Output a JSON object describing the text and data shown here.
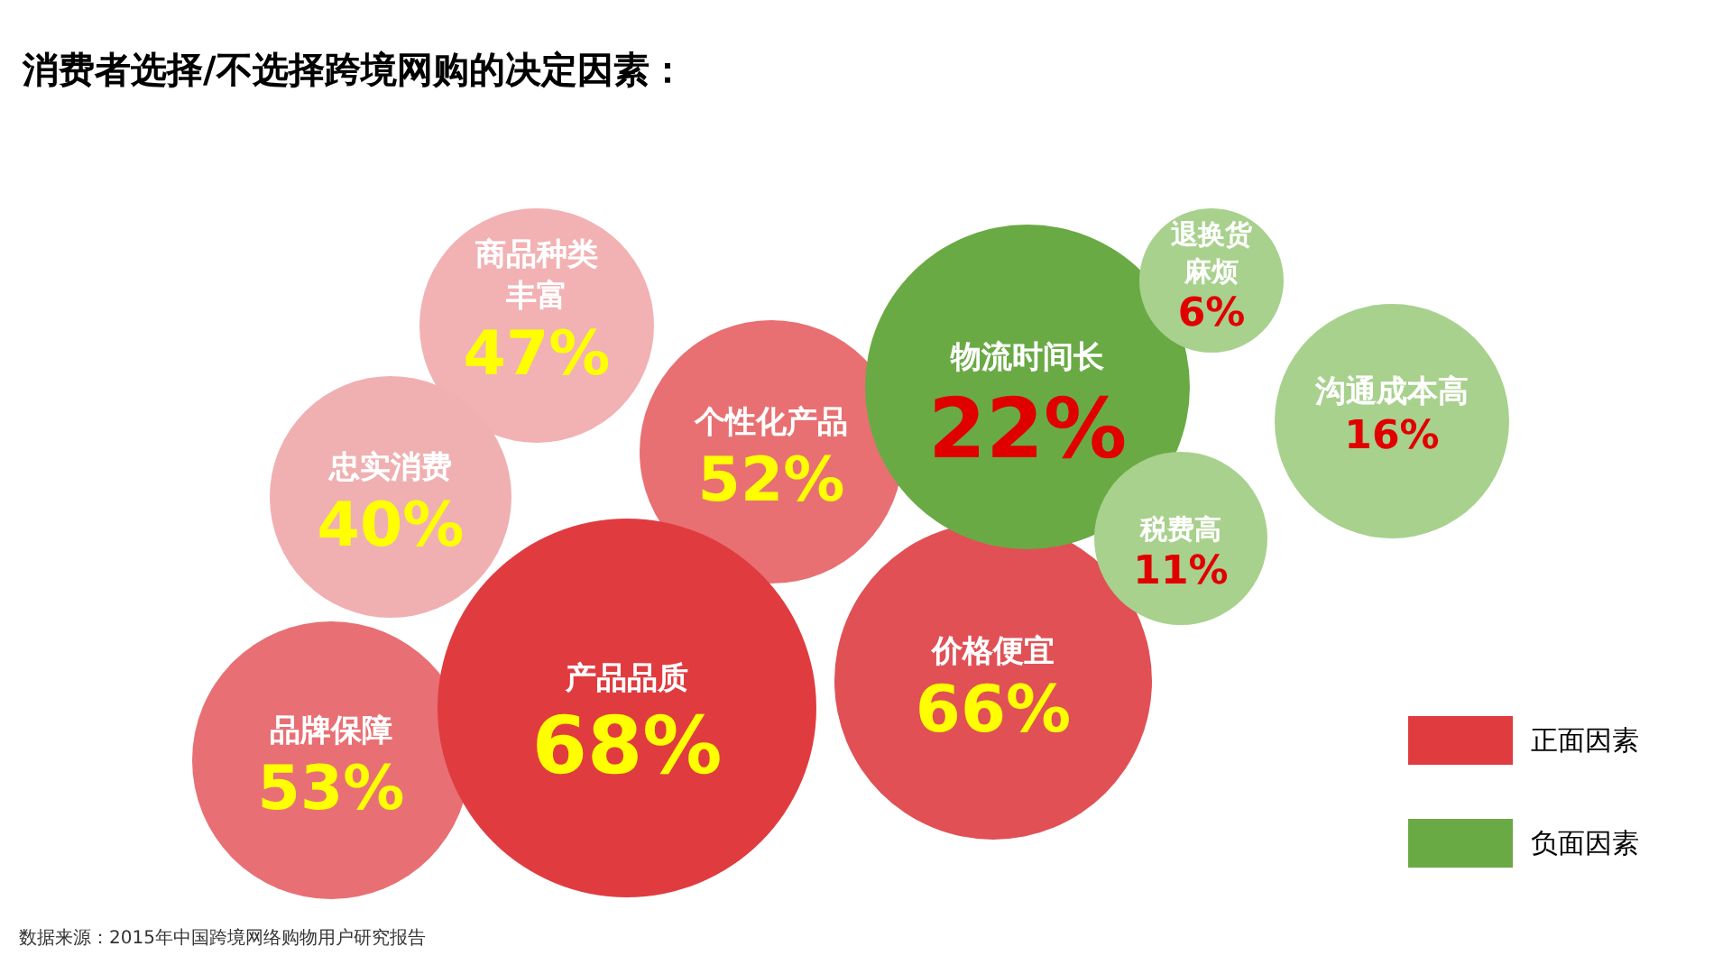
{
  "chart_data": {
    "type": "other",
    "title": "消费者选择/不选择跨境网购的决定因素：",
    "categories": [
      "商品种类丰富",
      "忠实消费",
      "个性化产品",
      "品牌保障",
      "价格便宜",
      "产品品质",
      "物流时间长",
      "退换货麻烦",
      "沟通成本高",
      "税费高"
    ],
    "series": [
      {
        "name": "正面因素",
        "color": "#e03c40",
        "values": [
          47,
          40,
          52,
          53,
          66,
          68,
          null,
          null,
          null,
          null
        ],
        "value_labels": [
          "47%",
          "40%",
          "52%",
          "53%",
          "66%",
          "68%",
          null,
          null,
          null,
          null
        ],
        "colors": [
          "#f2b1b3",
          "#f0b0b2",
          "#e87072",
          "#e87074",
          "#e05055",
          "#e03c40",
          null,
          null,
          null,
          null
        ]
      },
      {
        "name": "负面因素",
        "color": "#6aaa45",
        "values": [
          null,
          null,
          null,
          null,
          null,
          null,
          22,
          6,
          16,
          11
        ],
        "value_labels": [
          null,
          null,
          null,
          null,
          null,
          null,
          "22%",
          "6%",
          "16%",
          "11%"
        ],
        "colors": [
          null,
          null,
          null,
          null,
          null,
          null,
          "#6aaa45",
          "#a8d18d",
          "#a8d18d",
          "#a8d18d"
        ]
      }
    ],
    "legend": "bottom right",
    "annotations": [
      "数据来源：2015年中国跨境网络购物用户研究报告"
    ]
  }
}
